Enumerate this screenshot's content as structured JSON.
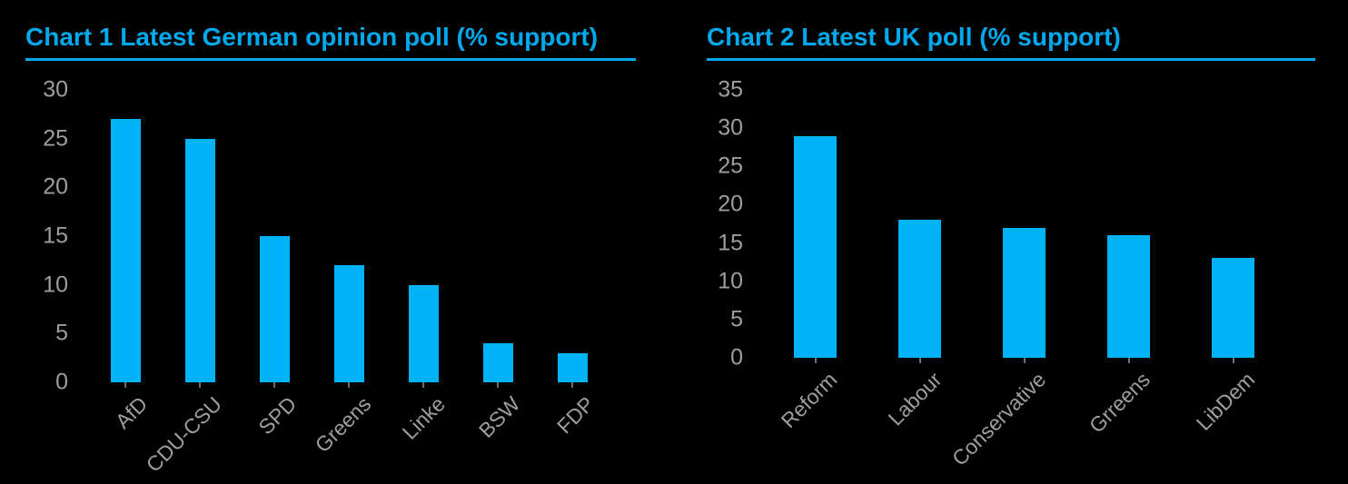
{
  "page": {
    "background": "#000000",
    "accent": "#00a9ec",
    "text_gray": "#9e9e9e"
  },
  "chart_data": [
    {
      "type": "bar",
      "title": "Chart 1 Latest German opinion poll (% support)",
      "categories": [
        "AfD",
        "CDU-CSU",
        "SPD",
        "Greens",
        "Linke",
        "BSW",
        "FDP"
      ],
      "values": [
        27,
        25,
        15,
        12,
        10,
        4,
        3
      ],
      "xlabel": "",
      "ylabel": "",
      "ylim": [
        0,
        30
      ],
      "ytick_step": 5,
      "yticks": [
        0,
        5,
        10,
        15,
        20,
        25,
        30
      ],
      "grid": false,
      "legend_position": "none",
      "bar_color": "#00b3f7",
      "axis_text_color": "#9e9e9e",
      "category_label_rotation_deg": 45
    },
    {
      "type": "bar",
      "title": "Chart 2 Latest UK poll (% support)",
      "categories": [
        "Reform",
        "Labour",
        "Conservative",
        "Grreens",
        "LibDem"
      ],
      "values": [
        29,
        18,
        17,
        16,
        13
      ],
      "xlabel": "",
      "ylabel": "",
      "ylim": [
        0,
        35
      ],
      "ytick_step": 5,
      "yticks": [
        0,
        5,
        10,
        15,
        20,
        25,
        30,
        35
      ],
      "grid": false,
      "legend_position": "none",
      "bar_color": "#00b3f7",
      "axis_text_color": "#9e9e9e",
      "category_label_rotation_deg": 45
    }
  ]
}
